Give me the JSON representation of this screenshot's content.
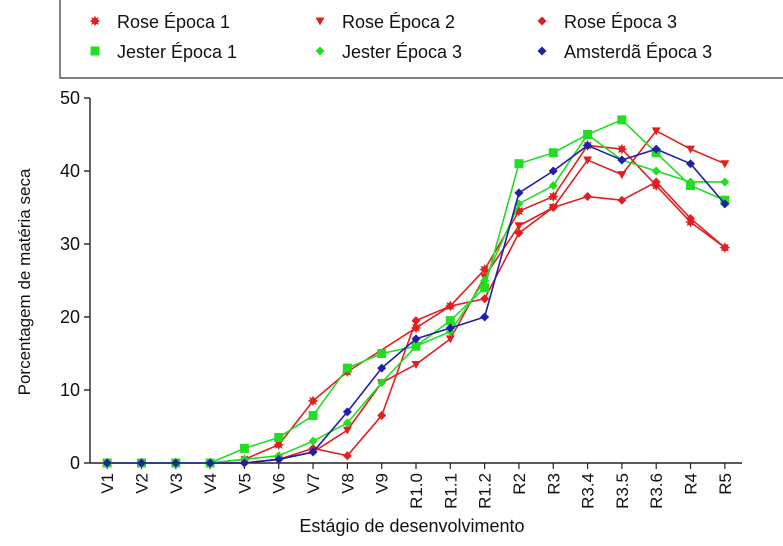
{
  "chart_data": {
    "type": "line",
    "title": "",
    "xlabel": "Estágio de desenvolvimento",
    "ylabel": "Porcentagem de matéria seca",
    "ylim": [
      0,
      50
    ],
    "yticks": [
      0,
      10,
      20,
      30,
      40,
      50
    ],
    "grid": false,
    "legend_position": "top",
    "categories": [
      "V1",
      "V2",
      "V3",
      "V4",
      "V5",
      "V6",
      "V7",
      "V8",
      "V9",
      "R1.0",
      "R1.1",
      "R1.2",
      "R2",
      "R3",
      "R3.4",
      "R3.5",
      "R3.6",
      "R4",
      "R5"
    ],
    "series": [
      {
        "name": "Rose Época 1",
        "color": "#e02020",
        "marker": "star",
        "values": [
          0,
          0,
          0,
          0,
          0.5,
          2.5,
          8.5,
          12.5,
          null,
          18.5,
          21.5,
          26.5,
          34.5,
          36.5,
          43.5,
          43,
          38,
          33,
          29.5
        ]
      },
      {
        "name": "Rose Época 2",
        "color": "#e02020",
        "marker": "triangle-down",
        "values": [
          0,
          0,
          0,
          0,
          0,
          0.5,
          1.5,
          4.5,
          11,
          13.5,
          17,
          25.5,
          32.5,
          35,
          41.5,
          39.5,
          45.5,
          43,
          41
        ]
      },
      {
        "name": "Rose Época 3",
        "color": "#e02020",
        "marker": "diamond",
        "values": [
          0,
          0,
          0,
          0,
          0,
          0.5,
          2,
          1,
          6.5,
          19.5,
          21.5,
          22.5,
          31.5,
          35,
          36.5,
          36,
          38.5,
          33.5,
          29.5
        ]
      },
      {
        "name": "Jester Época 1",
        "color": "#22dd22",
        "marker": "square",
        "values": [
          0,
          0,
          0,
          0,
          2,
          3.5,
          6.5,
          13,
          15,
          16,
          19.5,
          24,
          41,
          42.5,
          45,
          47,
          42.5,
          38,
          36
        ]
      },
      {
        "name": "Jester Época 3",
        "color": "#22dd22",
        "marker": "diamond",
        "values": [
          0,
          0,
          0,
          0,
          0.5,
          1,
          3,
          5.5,
          11,
          16,
          18,
          25,
          35.5,
          38,
          45,
          41.5,
          40,
          38.5,
          38.5
        ]
      },
      {
        "name": "Amsterdã Época 3",
        "color": "#1f1fa8",
        "marker": "diamond",
        "values": [
          0,
          0,
          0,
          0,
          0,
          0.5,
          1.5,
          7,
          13,
          17,
          18.5,
          20,
          37,
          40,
          43.5,
          41.5,
          43,
          41,
          35.5
        ]
      }
    ]
  }
}
